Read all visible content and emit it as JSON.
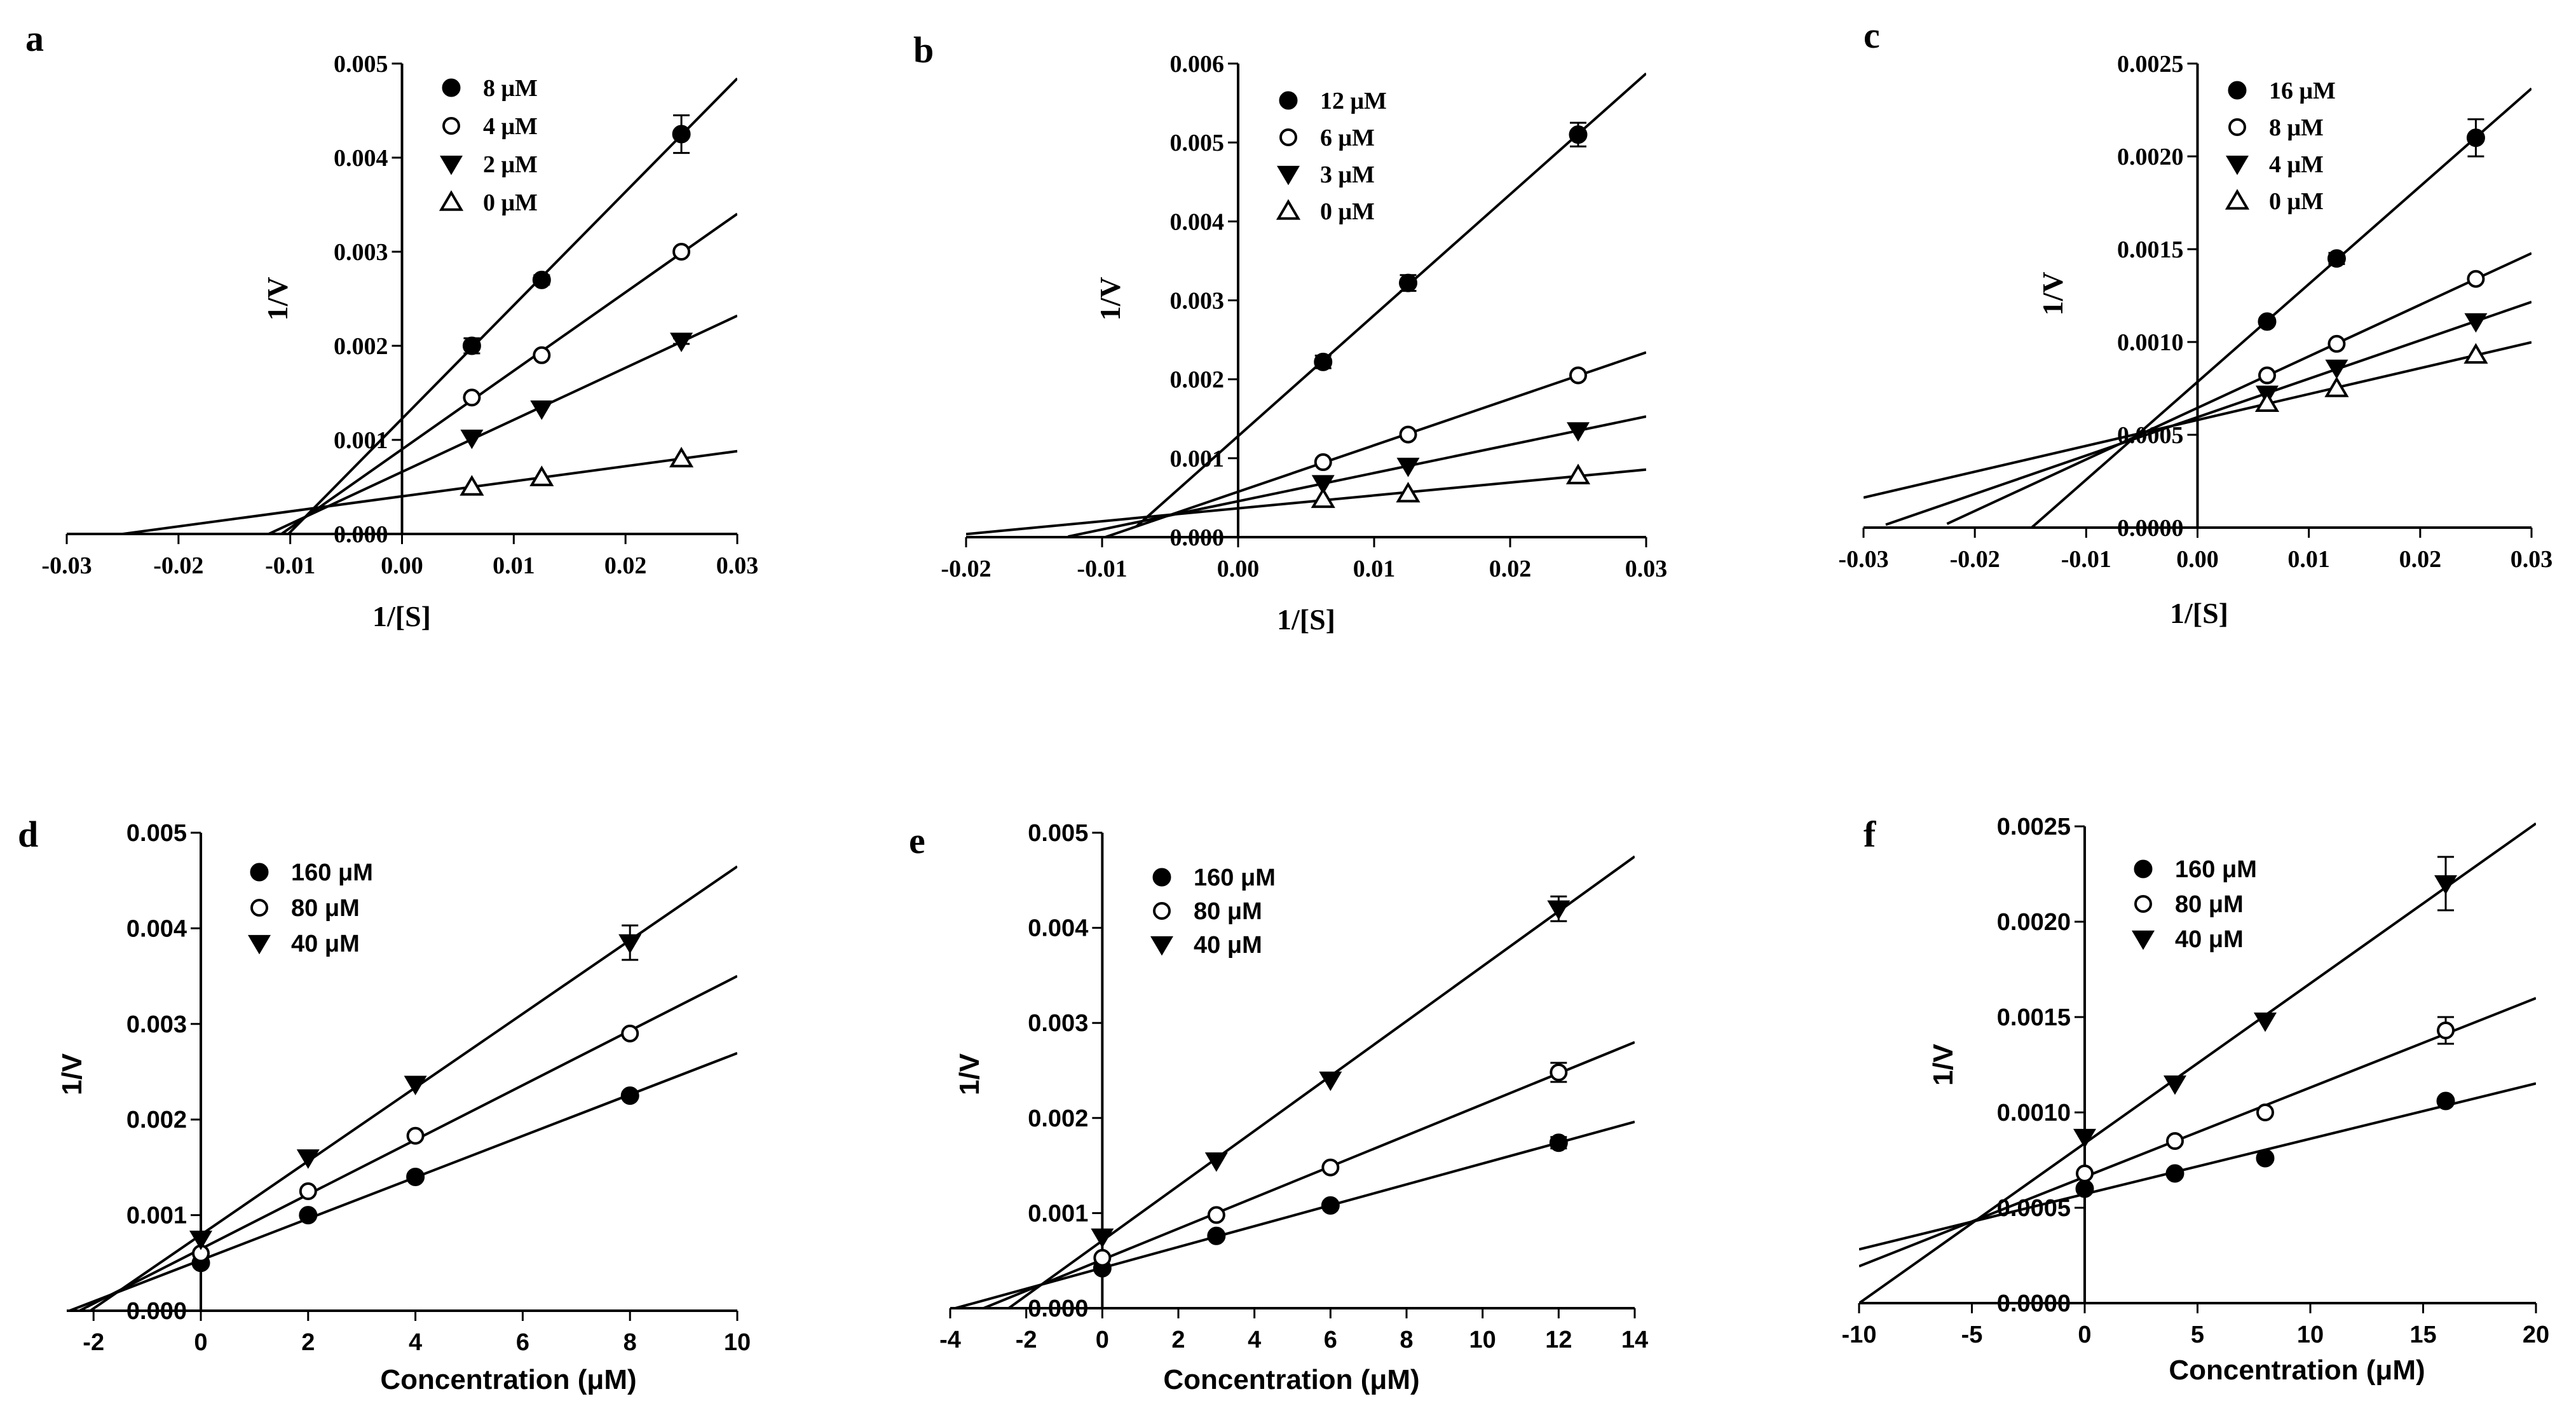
{
  "chart_data": [
    {
      "panel": "a",
      "type": "line",
      "xlabel": "1/[S]",
      "ylabel": "1/V",
      "xlim": [
        -0.03,
        0.03
      ],
      "ylim": [
        0,
        0.005
      ],
      "xticks": [
        "-0.03",
        "-0.02",
        "-0.01",
        "0.00",
        "0.01",
        "0.02",
        "0.03"
      ],
      "yticks": [
        "0.000",
        "0.001",
        "0.002",
        "0.003",
        "0.004",
        "0.005"
      ],
      "series": [
        {
          "name": "8 μM",
          "marker": "filled-circle",
          "x": [
            0.00625,
            0.0125,
            0.025
          ],
          "y": [
            0.002,
            0.0027,
            0.00425
          ],
          "err": [
            8e-05,
            5e-05,
            0.0002
          ],
          "line": [
            -0.0125,
            0.03
          ]
        },
        {
          "name": "4 μM",
          "marker": "open-circle",
          "x": [
            0.00625,
            0.0125,
            0.025
          ],
          "y": [
            0.00145,
            0.0019,
            0.003
          ],
          "err": [
            0,
            0,
            3e-05
          ],
          "line": [
            -0.013,
            0.03
          ]
        },
        {
          "name": "2 μM",
          "marker": "filled-triangle-down",
          "x": [
            0.00625,
            0.0125,
            0.025
          ],
          "y": [
            0.00102,
            0.00133,
            0.00205
          ],
          "err": [
            0,
            0,
            3e-05
          ],
          "line": [
            -0.0135,
            0.03
          ]
        },
        {
          "name": "0 μM",
          "marker": "open-triangle-up",
          "x": [
            0.00625,
            0.0125,
            0.025
          ],
          "y": [
            0.0005,
            0.0006,
            0.0008
          ],
          "err": [
            0,
            0,
            0
          ],
          "line": [
            -0.026,
            0.03
          ]
        }
      ]
    },
    {
      "panel": "b",
      "type": "line",
      "xlabel": "1/[S]",
      "ylabel": "1/V",
      "xlim": [
        -0.02,
        0.03
      ],
      "ylim": [
        0,
        0.006
      ],
      "xticks": [
        "-0.02",
        "-0.01",
        "0.00",
        "0.01",
        "0.02",
        "0.03"
      ],
      "yticks": [
        "0.000",
        "0.001",
        "0.002",
        "0.003",
        "0.004",
        "0.005",
        "0.006"
      ],
      "series": [
        {
          "name": "12 μM",
          "marker": "filled-circle",
          "x": [
            0.00625,
            0.0125,
            0.025
          ],
          "y": [
            0.00222,
            0.00322,
            0.0051
          ],
          "err": [
            8e-05,
            0.0001,
            0.00015
          ],
          "line": [
            -0.0075,
            0.03
          ]
        },
        {
          "name": "6 μM",
          "marker": "open-circle",
          "x": [
            0.00625,
            0.0125,
            0.025
          ],
          "y": [
            0.00095,
            0.0013,
            0.00205
          ],
          "err": [
            0,
            0,
            0
          ],
          "line": [
            -0.0115,
            0.03
          ]
        },
        {
          "name": "3 μM",
          "marker": "filled-triangle-down",
          "x": [
            0.00625,
            0.0125,
            0.025
          ],
          "y": [
            0.00068,
            0.0009,
            0.00135
          ],
          "err": [
            0,
            0,
            0
          ],
          "line": [
            -0.0125,
            0.03
          ]
        },
        {
          "name": "0 μM",
          "marker": "open-triangle-up",
          "x": [
            0.00625,
            0.0125,
            0.025
          ],
          "y": [
            0.00048,
            0.00055,
            0.00078
          ],
          "err": [
            0,
            0,
            0
          ],
          "line": [
            -0.02,
            0.03
          ]
        }
      ]
    },
    {
      "panel": "c",
      "type": "line",
      "xlabel": "1/[S]",
      "ylabel": "1/V",
      "xlim": [
        -0.03,
        0.03
      ],
      "ylim": [
        0,
        0.0025
      ],
      "xticks": [
        "-0.03",
        "-0.02",
        "-0.01",
        "0.00",
        "0.01",
        "0.02",
        "0.03"
      ],
      "yticks": [
        "0.0000",
        "0.0005",
        "0.0010",
        "0.0015",
        "0.0020",
        "0.0025"
      ],
      "series": [
        {
          "name": "16 μM",
          "marker": "filled-circle",
          "x": [
            0.00625,
            0.0125,
            0.025
          ],
          "y": [
            0.00111,
            0.00145,
            0.0021
          ],
          "err": [
            0,
            3e-05,
            0.0001
          ],
          "line": [
            -0.0155,
            0.03
          ]
        },
        {
          "name": "8 μM",
          "marker": "open-circle",
          "x": [
            0.00625,
            0.0125,
            0.025
          ],
          "y": [
            0.00082,
            0.00099,
            0.00134
          ],
          "err": [
            0,
            0,
            0
          ],
          "line": [
            -0.0225,
            0.03
          ]
        },
        {
          "name": "4 μM",
          "marker": "filled-triangle-down",
          "x": [
            0.00625,
            0.0125,
            0.025
          ],
          "y": [
            0.00072,
            0.00086,
            0.00111
          ],
          "err": [
            0,
            0,
            0
          ],
          "line": [
            -0.028,
            0.03
          ]
        },
        {
          "name": "0 μM",
          "marker": "open-triangle-up",
          "x": [
            0.00625,
            0.0125,
            0.025
          ],
          "y": [
            0.00067,
            0.00075,
            0.00093
          ],
          "err": [
            0,
            0,
            0
          ],
          "line": [
            -0.03,
            0.03
          ]
        }
      ]
    },
    {
      "panel": "d",
      "type": "line",
      "xlabel": "Concentration (μM)",
      "ylabel": "1/V",
      "xlim": [
        -2.5,
        10
      ],
      "ylim": [
        0,
        0.005
      ],
      "xticks": [
        "-2",
        "0",
        "2",
        "4",
        "6",
        "8",
        "10"
      ],
      "yticks": [
        "0.000",
        "0.001",
        "0.002",
        "0.003",
        "0.004",
        "0.005"
      ],
      "series": [
        {
          "name": "160 μM",
          "marker": "filled-circle",
          "x": [
            0,
            2,
            4,
            8
          ],
          "y": [
            0.0005,
            0.001,
            0.0014,
            0.00225
          ],
          "err": [
            0,
            0,
            0,
            0
          ],
          "line": [
            -2.5,
            10
          ]
        },
        {
          "name": "80 μM",
          "marker": "open-circle",
          "x": [
            0,
            2,
            4,
            8
          ],
          "y": [
            0.0006,
            0.00125,
            0.00183,
            0.0029
          ],
          "err": [
            0,
            0,
            0,
            0
          ],
          "line": [
            -2.5,
            10
          ]
        },
        {
          "name": "40 μM",
          "marker": "filled-triangle-down",
          "x": [
            0,
            2,
            4,
            8
          ],
          "y": [
            0.00075,
            0.0016,
            0.00237,
            0.00385
          ],
          "err": [
            0,
            0,
            0,
            0.00018
          ],
          "line": [
            -2.5,
            10
          ]
        }
      ]
    },
    {
      "panel": "e",
      "type": "line",
      "xlabel": "Concentration (μM)",
      "ylabel": "1/V",
      "xlim": [
        -4,
        14
      ],
      "ylim": [
        0,
        0.005
      ],
      "xticks": [
        "-4",
        "-2",
        "0",
        "2",
        "4",
        "6",
        "8",
        "10",
        "12",
        "14"
      ],
      "yticks": [
        "0.000",
        "0.001",
        "0.002",
        "0.003",
        "0.004",
        "0.005"
      ],
      "series": [
        {
          "name": "160 μM",
          "marker": "filled-circle",
          "x": [
            0,
            3,
            6,
            12
          ],
          "y": [
            0.00042,
            0.00076,
            0.00108,
            0.00174
          ],
          "err": [
            0,
            0,
            0,
            6e-05
          ],
          "line": [
            -4,
            14
          ]
        },
        {
          "name": "80 μM",
          "marker": "open-circle",
          "x": [
            0,
            3,
            6,
            12
          ],
          "y": [
            0.00053,
            0.00098,
            0.00148,
            0.00248
          ],
          "err": [
            0,
            0,
            0,
            0.0001
          ],
          "line": [
            -3.4,
            14
          ]
        },
        {
          "name": "40 μM",
          "marker": "filled-triangle-down",
          "x": [
            0,
            3,
            6,
            12
          ],
          "y": [
            0.00075,
            0.00155,
            0.0024,
            0.0042
          ],
          "err": [
            0,
            0,
            0,
            0.00013
          ],
          "line": [
            -2.55,
            14
          ]
        }
      ]
    },
    {
      "panel": "f",
      "type": "line",
      "xlabel": "Concentration (μM)",
      "ylabel": "1/V",
      "xlim": [
        -10,
        20
      ],
      "ylim": [
        0,
        0.0025
      ],
      "xticks": [
        "-10",
        "-5",
        "0",
        "5",
        "10",
        "15",
        "20"
      ],
      "yticks": [
        "0.0000",
        "0.0005",
        "0.0010",
        "0.0015",
        "0.0020",
        "0.0025"
      ],
      "series": [
        {
          "name": "160 μM",
          "marker": "filled-circle",
          "x": [
            0,
            4,
            8,
            16
          ],
          "y": [
            0.0006,
            0.00068,
            0.00076,
            0.00106
          ],
          "err": [
            0,
            0,
            0,
            0
          ],
          "line": [
            -10,
            20
          ]
        },
        {
          "name": "80 μM",
          "marker": "open-circle",
          "x": [
            0,
            4,
            8,
            16
          ],
          "y": [
            0.00068,
            0.00085,
            0.001,
            0.00143
          ],
          "err": [
            0,
            0,
            0,
            7e-05
          ],
          "line": [
            -10,
            20
          ]
        },
        {
          "name": "40 μM",
          "marker": "filled-triangle-down",
          "x": [
            0,
            4,
            8,
            16
          ],
          "y": [
            0.00087,
            0.00115,
            0.00148,
            0.0022
          ],
          "err": [
            0,
            0,
            0,
            0.00014
          ],
          "line": [
            -10,
            20
          ]
        }
      ]
    }
  ]
}
